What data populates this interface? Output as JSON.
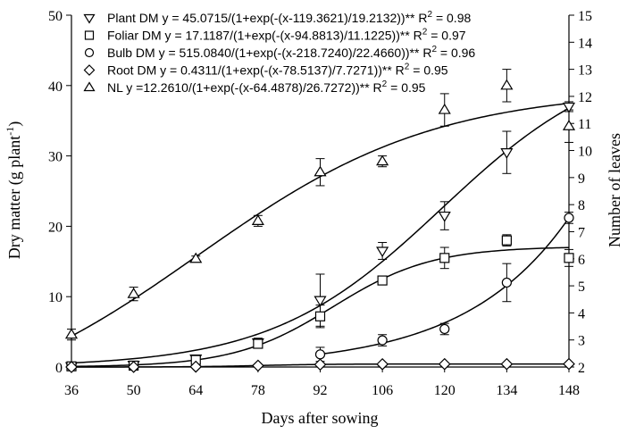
{
  "chart_data": {
    "type": "scatter",
    "xlabel": "Days after sowing",
    "ylabel_left": "Dry matter (g plant⁻¹)",
    "ylabel_right": "Number of leaves",
    "x_ticks": [
      36,
      50,
      64,
      78,
      92,
      106,
      120,
      134,
      148
    ],
    "xlim": [
      36,
      148
    ],
    "ylim_left": [
      0,
      50
    ],
    "y_ticks_left": [
      0,
      10,
      20,
      30,
      40,
      50
    ],
    "ylim_right": [
      2,
      15
    ],
    "y_ticks_right": [
      2,
      3,
      4,
      5,
      6,
      7,
      8,
      9,
      10,
      11,
      12,
      13,
      14,
      15
    ],
    "legend_position": "top-left",
    "series": [
      {
        "name": "Plant DM",
        "axis": "left",
        "marker": "triangle-down",
        "equation": "y = 45.0715/(1+exp(-(x-119.3621)/19.2132))** R² = 0.98",
        "model": {
          "a": 45.0715,
          "x0": 119.3621,
          "b": 19.2132
        },
        "x": [
          36,
          50,
          64,
          78,
          92,
          106,
          120,
          134,
          148
        ],
        "y": [
          0.1,
          0.3,
          1.2,
          3.5,
          9.5,
          16.5,
          21.5,
          30.5,
          37.0
        ],
        "err": [
          0.1,
          0.2,
          0.3,
          0.6,
          3.7,
          1.2,
          2.0,
          3.0,
          0.7
        ]
      },
      {
        "name": "Foliar DM",
        "axis": "left",
        "marker": "square",
        "equation": "y = 17.1187/(1+exp(-(x-94.8813)/11.1225))** R² = 0.97",
        "model": {
          "a": 17.1187,
          "x0": 94.8813,
          "b": 11.1225
        },
        "x": [
          36,
          50,
          64,
          78,
          92,
          106,
          120,
          134,
          148
        ],
        "y": [
          0.1,
          0.2,
          1.0,
          3.3,
          7.2,
          12.3,
          15.5,
          18.0,
          15.5
        ],
        "err": [
          0.1,
          0.1,
          0.3,
          0.5,
          1.6,
          0.4,
          1.5,
          0.8,
          1.2
        ]
      },
      {
        "name": "Bulb DM",
        "axis": "left",
        "marker": "circle",
        "equation": "y = 515.0840/(1+exp(-(x-218.7240)/22.4660))** R² = 0.96",
        "model": {
          "a": 515.084,
          "x0": 218.724,
          "b": 22.466
        },
        "x": [
          92,
          106,
          120,
          134,
          148
        ],
        "y": [
          1.8,
          3.8,
          5.4,
          12.0,
          21.2
        ],
        "err": [
          1.0,
          0.8,
          0.8,
          2.7,
          0.8
        ]
      },
      {
        "name": "Root DM",
        "axis": "left",
        "marker": "diamond",
        "equation": "y = 0.4311/(1+exp(-(x-78.5137)/7.7271))** R² = 0.95",
        "model": {
          "a": 0.4311,
          "x0": 78.5137,
          "b": 7.7271
        },
        "x": [
          36,
          50,
          64,
          78,
          92,
          106,
          120,
          134,
          148
        ],
        "y": [
          0.0,
          0.02,
          0.05,
          0.2,
          0.35,
          0.4,
          0.42,
          0.42,
          0.43
        ],
        "err": [
          0,
          0,
          0,
          0,
          0,
          0,
          0,
          0,
          0
        ]
      },
      {
        "name": "NL",
        "axis": "right",
        "marker": "triangle-up",
        "equation": "y =12.2610/(1+exp(-(x-64.4878)/26.7272))** R² = 0.95",
        "model": {
          "a": 12.261,
          "x0": 64.4878,
          "b": 26.7272
        },
        "x": [
          36,
          50,
          64,
          78,
          92,
          106,
          120,
          134,
          148
        ],
        "y": [
          3.2,
          4.7,
          6.0,
          7.4,
          9.2,
          9.6,
          11.5,
          12.4,
          10.9
        ],
        "err": [
          0.2,
          0.25,
          0.1,
          0.2,
          0.5,
          0.2,
          0.6,
          0.6,
          0.6
        ]
      }
    ]
  }
}
